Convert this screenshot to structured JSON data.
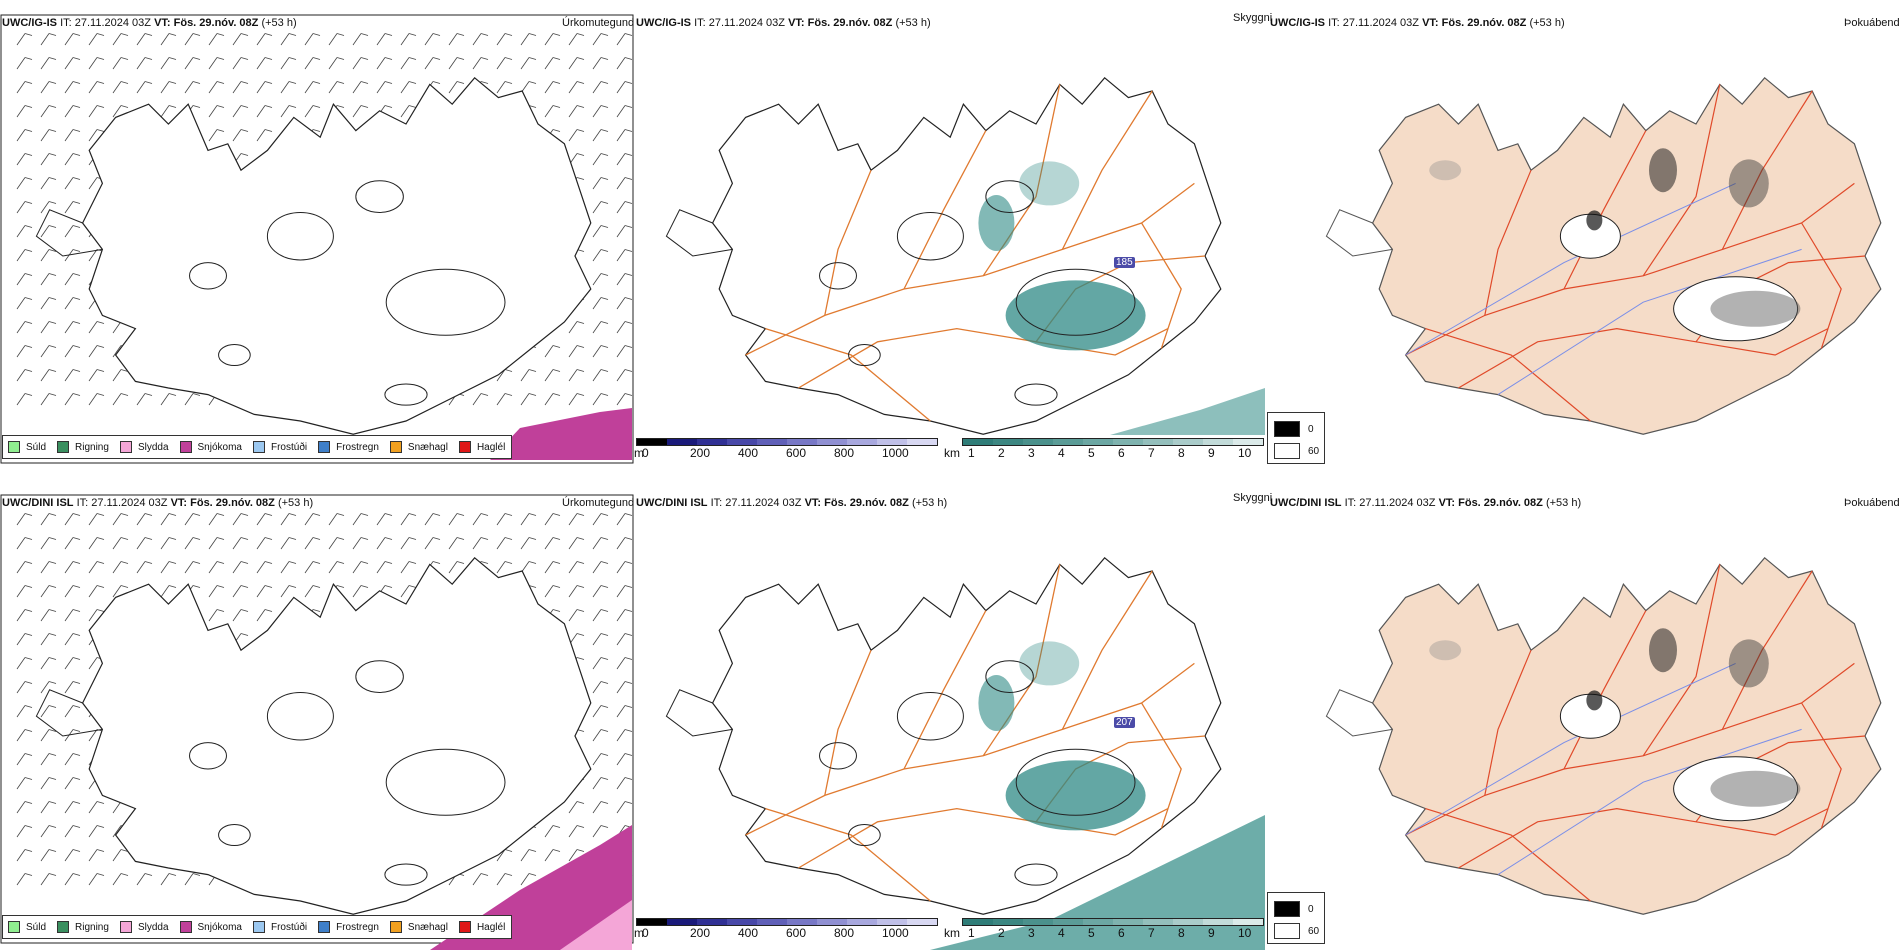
{
  "rows": [
    {
      "model": "UWC/IG-IS",
      "it_label": "IT:",
      "it_value": "27.11.2024 03Z",
      "vt_label": "VT:",
      "vt_value": "Fös. 29.nóv. 08Z",
      "lead": "(+53 h)",
      "label_1": "185"
    },
    {
      "model": "UWC/DINI ISL",
      "it_label": "IT:",
      "it_value": "27.11.2024 03Z",
      "vt_label": "VT:",
      "vt_value": "Fös. 29.nóv. 08Z",
      "lead": "(+53 h)",
      "label_1": "207"
    }
  ],
  "panel_titles": {
    "precip": "Úrkomutegund",
    "visibility": "Skyggni",
    "fog": "Þokuábendi"
  },
  "precip_legend": [
    {
      "label": "Súld",
      "color": "#90ee90"
    },
    {
      "label": "Rigning",
      "color": "#3a8f5f"
    },
    {
      "label": "Slydda",
      "color": "#f4a6d7"
    },
    {
      "label": "Snjókoma",
      "color": "#c0409a"
    },
    {
      "label": "Frostúði",
      "color": "#9cc8f0"
    },
    {
      "label": "Frostregn",
      "color": "#3f7fc8"
    },
    {
      "label": "Snæhagl",
      "color": "#f0a020"
    },
    {
      "label": "Haglél",
      "color": "#e01818"
    }
  ],
  "ceiling_scale": {
    "unit": "m",
    "ticks": [
      "0",
      "200",
      "400",
      "600",
      "800",
      "1000"
    ],
    "colors": [
      "#000000",
      "#1a1a7a",
      "#303094",
      "#4848a8",
      "#6060b8",
      "#7878c6",
      "#9090d2",
      "#a8a8de",
      "#c0c0e8",
      "#d8d8f2"
    ]
  },
  "visibility_scale": {
    "unit": "km",
    "ticks": [
      "1",
      "2",
      "3",
      "4",
      "5",
      "6",
      "7",
      "8",
      "9",
      "10"
    ],
    "colors": [
      "#2f7d78",
      "#3d8782",
      "#4b918c",
      "#5b9c97",
      "#6ca7a3",
      "#7fb3af",
      "#94bfbc",
      "#aaccca",
      "#c2dbd9",
      "#dbeae9"
    ]
  },
  "fog_legend": [
    {
      "label": "0",
      "color": "#000000"
    },
    {
      "label": "60",
      "color": "#ffffff"
    }
  ],
  "colors": {
    "land_fog": "#f5dcc8",
    "roads": "#e07a30",
    "roads_red": "#e04a2a",
    "rivers": "#7a8ee8",
    "snow": "#c0409a",
    "sleet": "#f4a6d7",
    "visibility": "#2f8a85",
    "coast": "#222222"
  }
}
